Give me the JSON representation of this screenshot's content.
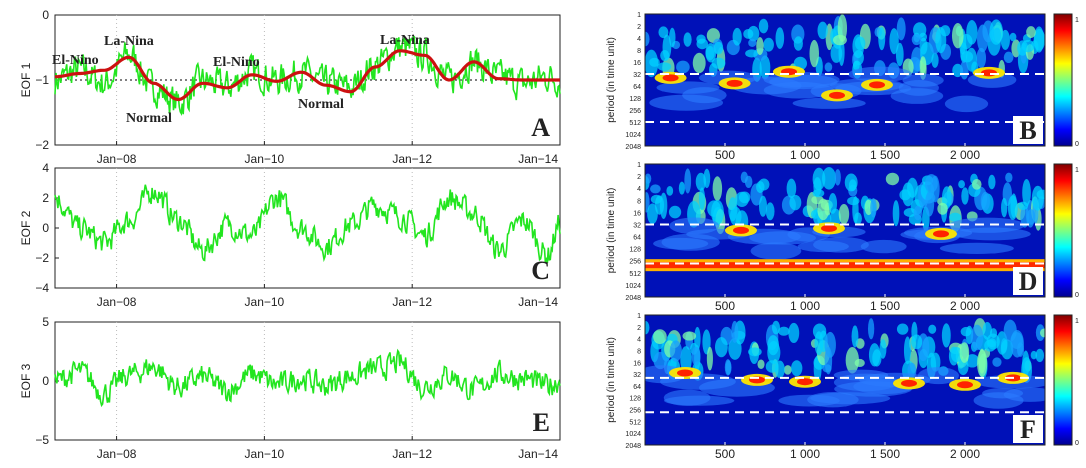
{
  "colors": {
    "signal": "#22e51f",
    "smooth": "#cc1111",
    "axis": "#222222",
    "dash": "#000000"
  },
  "time_panels": [
    {
      "letter": "A",
      "ylabel": "EOF 1",
      "yticks": [
        "0",
        "−1",
        "−2"
      ],
      "xticks": [
        "Jan−08",
        "Jan−10",
        "Jan−12",
        "Jan−14"
      ],
      "annotations": [
        "El-Nino",
        "La-Nina",
        "Normal",
        "El-Nino",
        "Normal",
        "La-Nina"
      ]
    },
    {
      "letter": "C",
      "ylabel": "EOF 2",
      "yticks": [
        "4",
        "2",
        "0",
        "−2",
        "−4"
      ],
      "xticks": [
        "Jan−08",
        "Jan−10",
        "Jan−12",
        "Jan−14"
      ]
    },
    {
      "letter": "E",
      "ylabel": "EOF 3",
      "yticks": [
        "5",
        "0",
        "−5"
      ],
      "xticks": [
        "Jan−08",
        "Jan−10",
        "Jan−12",
        "Jan−14"
      ]
    }
  ],
  "wavelet_panels": [
    {
      "letter": "B",
      "ylabel": "period (in time unit)"
    },
    {
      "letter": "D",
      "ylabel": "period (in time unit)"
    },
    {
      "letter": "F",
      "ylabel": "period (in time unit)"
    }
  ],
  "wavelet_yticks": [
    "1",
    "2",
    "4",
    "8",
    "16",
    "32",
    "64",
    "128",
    "256",
    "512",
    "1024",
    "2048"
  ],
  "wavelet_xticks": [
    "500",
    "1 000",
    "1 500",
    "2 000"
  ],
  "colorbar_ticks": [
    "1",
    "0"
  ],
  "chart_data": [
    {
      "type": "line",
      "panel": "A",
      "x": [
        "2007-03",
        "2007-07",
        "2007-11",
        "2008-03",
        "2008-07",
        "2008-11",
        "2009-03",
        "2009-07",
        "2009-11",
        "2010-03",
        "2010-07",
        "2010-11",
        "2011-03",
        "2011-07",
        "2011-11",
        "2012-03",
        "2012-07",
        "2012-11",
        "2013-03",
        "2013-07",
        "2013-11",
        "2014-01"
      ],
      "series": [
        {
          "values": [
            -1.0,
            -0.85,
            -1.05,
            -0.62,
            -1.12,
            -1.35,
            -1.02,
            -1.1,
            -0.88,
            -1.0,
            -0.9,
            -1.05,
            -1.12,
            -0.78,
            -0.5,
            -0.62,
            -1.0,
            -0.72,
            -0.95,
            -1.05,
            -0.95,
            -1.0
          ]
        },
        {
          "values": [
            -0.95,
            -0.9,
            -0.85,
            -0.65,
            -1.05,
            -1.3,
            -1.05,
            -1.12,
            -0.92,
            -1.02,
            -0.88,
            -1.08,
            -1.18,
            -0.8,
            -0.55,
            -0.62,
            -1.0,
            -0.72,
            -0.98,
            -1.0,
            -1.0,
            -1.0
          ]
        }
      ],
      "ylim": [
        -2,
        0
      ],
      "reference_line": -1
    },
    {
      "type": "line",
      "panel": "C",
      "x": [
        "2007-03",
        "2007-07",
        "2007-11",
        "2008-03",
        "2008-07",
        "2008-11",
        "2009-03",
        "2009-07",
        "2009-11",
        "2010-03",
        "2010-07",
        "2010-11",
        "2011-03",
        "2011-07",
        "2011-11",
        "2012-03",
        "2012-07",
        "2012-11",
        "2013-03",
        "2013-07",
        "2013-11",
        "2014-01"
      ],
      "series": [
        {
          "values": [
            2.0,
            0.0,
            -1.0,
            0.5,
            2.5,
            0.5,
            -1.5,
            0.2,
            -0.5,
            2.0,
            0.0,
            -1.2,
            0.2,
            1.5,
            0.8,
            -0.5,
            2.0,
            1.0,
            -1.5,
            0.5,
            -1.8,
            0.3
          ]
        }
      ],
      "ylim": [
        -4,
        4
      ]
    },
    {
      "type": "line",
      "panel": "E",
      "x": [
        "2007-03",
        "2007-07",
        "2007-11",
        "2008-03",
        "2008-07",
        "2008-11",
        "2009-03",
        "2009-07",
        "2009-11",
        "2010-03",
        "2010-07",
        "2010-11",
        "2011-03",
        "2011-07",
        "2011-11",
        "2012-03",
        "2012-07",
        "2012-11",
        "2013-03",
        "2013-07",
        "2013-11",
        "2014-01"
      ],
      "series": [
        {
          "values": [
            0.0,
            0.8,
            -1.0,
            0.5,
            1.2,
            -0.5,
            0.3,
            -0.8,
            0.6,
            -0.3,
            0.2,
            -0.4,
            0.4,
            1.0,
            1.5,
            -0.5,
            0.5,
            -0.8,
            0.6,
            0.2,
            -0.4,
            0.0
          ]
        }
      ],
      "ylim": [
        -5,
        5
      ]
    },
    {
      "type": "heatmap",
      "panel": "B",
      "x_range": [
        0,
        2500
      ],
      "y_range": [
        1,
        2048
      ],
      "y_scale": "log2",
      "colormap": "jet",
      "color_range": [
        0,
        1
      ],
      "dashed_periods": [
        32,
        512
      ],
      "hotspots": [
        {
          "x": 160,
          "period": 40
        },
        {
          "x": 560,
          "period": 55
        },
        {
          "x": 900,
          "period": 28
        },
        {
          "x": 1450,
          "period": 60
        },
        {
          "x": 2150,
          "period": 30
        },
        {
          "x": 1200,
          "period": 110
        }
      ]
    },
    {
      "type": "heatmap",
      "panel": "D",
      "x_range": [
        0,
        2500
      ],
      "y_range": [
        1,
        2048
      ],
      "y_scale": "log2",
      "colormap": "jet",
      "color_range": [
        0,
        1
      ],
      "dashed_periods": [
        32,
        300
      ],
      "band_period": 330,
      "hotspots": [
        {
          "x": 600,
          "period": 45
        },
        {
          "x": 1150,
          "period": 40
        },
        {
          "x": 1850,
          "period": 55
        }
      ]
    },
    {
      "type": "heatmap",
      "panel": "F",
      "x_range": [
        0,
        2500
      ],
      "y_range": [
        1,
        2048
      ],
      "y_scale": "log2",
      "colormap": "jet",
      "color_range": [
        0,
        1
      ],
      "dashed_periods": [
        40,
        300
      ],
      "hotspots": [
        {
          "x": 250,
          "period": 30
        },
        {
          "x": 700,
          "period": 45
        },
        {
          "x": 1000,
          "period": 50
        },
        {
          "x": 1650,
          "period": 55
        },
        {
          "x": 2000,
          "period": 60
        },
        {
          "x": 2300,
          "period": 40
        }
      ]
    }
  ]
}
